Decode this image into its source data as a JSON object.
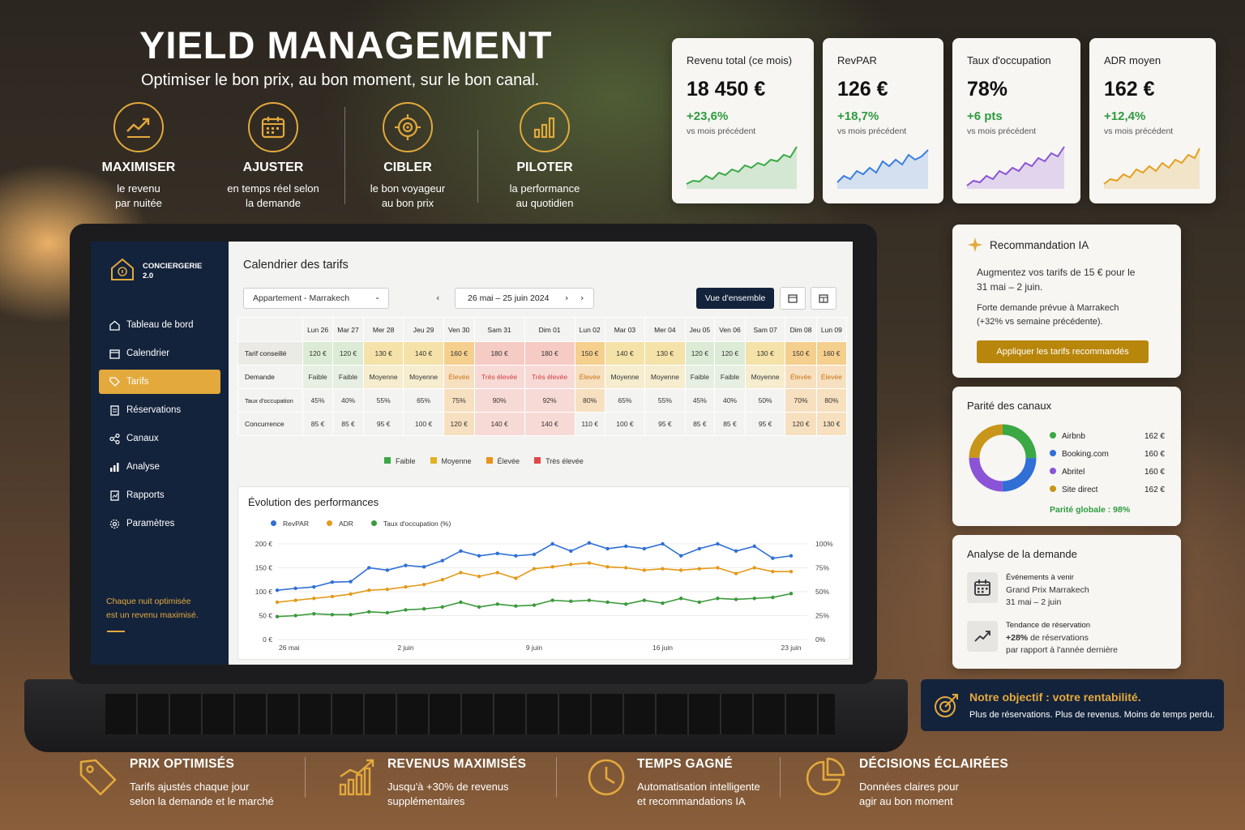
{
  "hero": {
    "title": "YIELD MANAGEMENT",
    "subtitle": "Optimiser le bon prix, au bon moment, sur le bon canal.",
    "features": [
      {
        "icon": "trend-up-icon",
        "title": "MAXIMISER",
        "line1": "le revenu",
        "line2": "par nuitée"
      },
      {
        "icon": "calendar-icon",
        "title": "AJUSTER",
        "line1": "en temps réel selon",
        "line2": "la demande"
      },
      {
        "icon": "target-icon",
        "title": "CIBLER",
        "line1": "le bon voyageur",
        "line2": "au bon prix"
      },
      {
        "icon": "bar-chart-icon",
        "title": "PILOTER",
        "line1": "la performance",
        "line2": "au quotidien"
      }
    ]
  },
  "kpis": [
    {
      "label": "Revenu total (ce mois)",
      "value": "18 450 €",
      "change": "+23,6%",
      "sub": "vs mois précédent",
      "color": "#3aa845"
    },
    {
      "label": "RevPAR",
      "value": "126 €",
      "change": "+18,7%",
      "sub": "vs mois précédent",
      "color": "#3a7ee0"
    },
    {
      "label": "Taux d'occupation",
      "value": "78%",
      "change": "+6 pts",
      "sub": "vs mois précédent",
      "color": "#8b53d6"
    },
    {
      "label": "ADR moyen",
      "value": "162 €",
      "change": "+12,4%",
      "sub": "vs mois précédent",
      "color": "#e3a020"
    }
  ],
  "app": {
    "brand_line1": "CONCIERGERIE",
    "brand_line2": "2.0",
    "nav": [
      {
        "label": "Tableau de bord",
        "icon": "home-icon"
      },
      {
        "label": "Calendrier",
        "icon": "calendar-icon"
      },
      {
        "label": "Tarifs",
        "icon": "tag-icon"
      },
      {
        "label": "Réservations",
        "icon": "document-icon"
      },
      {
        "label": "Canaux",
        "icon": "share-icon"
      },
      {
        "label": "Analyse",
        "icon": "bar-chart-icon"
      },
      {
        "label": "Rapports",
        "icon": "report-icon"
      },
      {
        "label": "Paramètres",
        "icon": "gear-icon"
      }
    ],
    "tagline1": "Chaque nuit optimisée",
    "tagline2": "est un revenu maximisé.",
    "calendar_title": "Calendrier des tarifs",
    "property_select": "Appartement - Marrakech",
    "date_range": "26 mai – 25 juin 2024",
    "overview_button": "Vue d'ensemble",
    "days": [
      "Lun 26",
      "Mar 27",
      "Mer 28",
      "Jeu 29",
      "Ven 30",
      "Sam 31",
      "Dim 01",
      "Lun 02",
      "Mar 03",
      "Mer 04",
      "Jeu 05",
      "Ven 06",
      "Sam 07",
      "Dim 08",
      "Lun 09"
    ],
    "row_labels": {
      "price": "Tarif conseillé",
      "demand": "Demande",
      "occupancy": "Taux d'occupation",
      "competition": "Concurrence"
    },
    "prices": [
      "120 €",
      "120 €",
      "130 €",
      "140 €",
      "160 €",
      "180 €",
      "180 €",
      "150 €",
      "140 €",
      "130 €",
      "120 €",
      "120 €",
      "130 €",
      "150 €",
      "160 €"
    ],
    "demand": [
      "Faible",
      "Faible",
      "Moyenne",
      "Moyenne",
      "Élevée",
      "Très élevée",
      "Très élevée",
      "Élevée",
      "Moyenne",
      "Moyenne",
      "Faible",
      "Faible",
      "Moyenne",
      "Élevée",
      "Élevée"
    ],
    "occupancy": [
      "45%",
      "40%",
      "55%",
      "65%",
      "75%",
      "90%",
      "92%",
      "80%",
      "65%",
      "55%",
      "45%",
      "40%",
      "50%",
      "70%",
      "80%"
    ],
    "competition": [
      "85 €",
      "85 €",
      "95 €",
      "100 €",
      "120 €",
      "140 €",
      "140 €",
      "110 €",
      "100 €",
      "95 €",
      "85 €",
      "85 €",
      "95 €",
      "120 €",
      "130 €"
    ],
    "legend": [
      {
        "label": "Faible",
        "color": "#3aa845"
      },
      {
        "label": "Moyenne",
        "color": "#e3b020"
      },
      {
        "label": "Élevée",
        "color": "#e8941a"
      },
      {
        "label": "Très élevée",
        "color": "#e04848"
      }
    ]
  },
  "chart_data": {
    "type": "line",
    "title": "Évolution des performances",
    "x_ticks": [
      "26 mai",
      "2 juin",
      "9 juin",
      "16 juin",
      "23 juin"
    ],
    "y_left_ticks": [
      "0 €",
      "50 €",
      "100 €",
      "150 €",
      "200 €"
    ],
    "y_right_ticks": [
      "0%",
      "25%",
      "50%",
      "75%",
      "100%"
    ],
    "ylim_left": [
      0,
      200
    ],
    "ylim_right": [
      0,
      100
    ],
    "series": [
      {
        "name": "RevPAR",
        "color": "#2f6fd6",
        "axis": "left",
        "values": [
          103,
          107,
          110,
          120,
          121,
          150,
          145,
          155,
          152,
          165,
          185,
          175,
          180,
          175,
          178,
          200,
          185,
          202,
          190,
          195,
          190,
          200,
          175,
          190,
          200,
          185,
          195,
          170,
          175
        ]
      },
      {
        "name": "ADR",
        "color": "#e39a1a",
        "axis": "left",
        "values": [
          78,
          82,
          86,
          90,
          95,
          103,
          105,
          110,
          115,
          125,
          140,
          132,
          140,
          128,
          148,
          152,
          157,
          160,
          152,
          150,
          145,
          148,
          145,
          148,
          150,
          138,
          150,
          142,
          142
        ]
      },
      {
        "name": "Taux d'occupation (%)",
        "color": "#3a9a3a",
        "axis": "right",
        "values": [
          24,
          25,
          27,
          26,
          26,
          29,
          28,
          31,
          32,
          34,
          39,
          34,
          37,
          35,
          36,
          41,
          40,
          41,
          39,
          37,
          41,
          38,
          43,
          39,
          43,
          42,
          43,
          44,
          48
        ]
      }
    ]
  },
  "recommendation": {
    "title": "Recommandation IA",
    "line1": "Augmentez vos tarifs de 15 € pour le",
    "line2": "31 mai – 2 juin.",
    "line3": "Forte demande prévue à Marrakech",
    "line4": "(+32% vs semaine précédente).",
    "button": "Appliquer les tarifs recommandés"
  },
  "parity": {
    "title": "Parité des canaux",
    "channels": [
      {
        "name": "Airbnb",
        "price": "162 €",
        "color": "#3aa845"
      },
      {
        "name": "Booking.com",
        "price": "160 €",
        "color": "#2f6fd6"
      },
      {
        "name": "Abritel",
        "price": "160 €",
        "color": "#8b53d6"
      },
      {
        "name": "Site direct",
        "price": "162 €",
        "color": "#c8961a"
      }
    ],
    "global": "Parité globale : 98%"
  },
  "demand_analysis": {
    "title": "Analyse de la demande",
    "event_label": "Événements à venir",
    "event_name": "Grand Prix Marrakech",
    "event_dates": "31 mai – 2 juin",
    "trend_label": "Tendance de réservation",
    "trend_value": "+28%",
    "trend_text": " de réservations",
    "trend_text2": "par rapport à l'année dernière"
  },
  "objective": {
    "title": "Notre objectif : votre rentabilité.",
    "text": "Plus de réservations. Plus de revenus. Moins de temps perdu."
  },
  "benefits": [
    {
      "icon": "price-tag-icon",
      "title": "PRIX OPTIMISÉS",
      "line1": "Tarifs ajustés chaque jour",
      "line2": "selon la demande et le marché"
    },
    {
      "icon": "growth-chart-icon",
      "title": "REVENUS MAXIMISÉS",
      "line1": "Jusqu'à +30% de revenus",
      "line2": "supplémentaires"
    },
    {
      "icon": "clock-icon",
      "title": "TEMPS GAGNÉ",
      "line1": "Automatisation intelligente",
      "line2": "et recommandations IA"
    },
    {
      "icon": "pie-chart-icon",
      "title": "DÉCISIONS ÉCLAIRÉES",
      "line1": "Données claires pour",
      "line2": "agir au bon moment"
    }
  ]
}
